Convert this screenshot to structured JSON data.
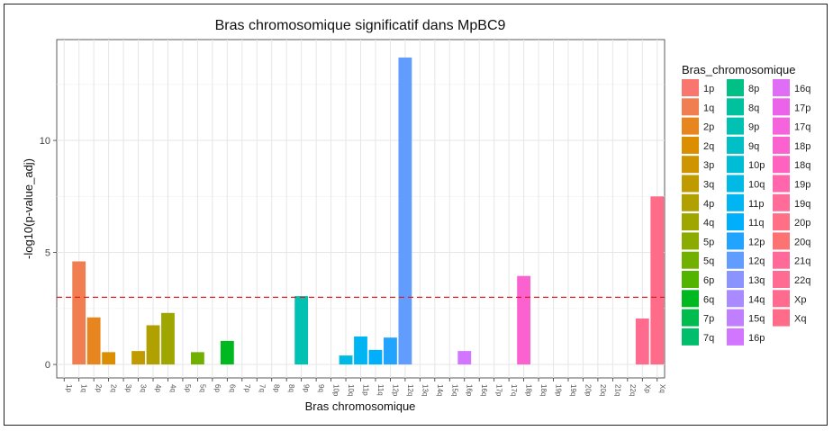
{
  "chart_data": {
    "type": "bar",
    "title": "Bras chromosomique significatif dans MpBC9",
    "xlabel": "Bras chromosomique",
    "ylabel": "-log10(p-value_adj)",
    "ylim": [
      -0.6,
      14.5
    ],
    "yticks": [
      0,
      5,
      10
    ],
    "threshold": 3.0,
    "threshold_color": "#e41a1c",
    "grid": true,
    "legend_title": "Bras_chromosomique",
    "legend_position": "right",
    "categories": [
      "1p",
      "1q",
      "2p",
      "2q",
      "3p",
      "3q",
      "4p",
      "4q",
      "5p",
      "5q",
      "6p",
      "6q",
      "7p",
      "7q",
      "8p",
      "8q",
      "9p",
      "9q",
      "10p",
      "10q",
      "11p",
      "11q",
      "12p",
      "12q",
      "13q",
      "14q",
      "15q",
      "16p",
      "16q",
      "17p",
      "17q",
      "18p",
      "18q",
      "19p",
      "19q",
      "20p",
      "20q",
      "21q",
      "22q",
      "Xp",
      "Xq"
    ],
    "values": [
      0,
      4.6,
      2.1,
      0.55,
      0,
      0.6,
      1.75,
      2.3,
      0,
      0.55,
      0,
      1.05,
      0,
      0,
      0,
      0,
      3.05,
      0,
      0,
      0.4,
      1.25,
      0.65,
      1.2,
      13.7,
      0,
      0,
      0,
      0.6,
      0,
      0,
      0,
      3.95,
      0,
      0,
      0,
      0,
      0,
      0,
      0,
      2.05,
      7.5
    ],
    "colors": [
      "#F8766D",
      "#F07E50",
      "#E7851E",
      "#DB8E00",
      "#CE9500",
      "#C09B00",
      "#B0A100",
      "#9FA600",
      "#8BAB00",
      "#72B000",
      "#53B400",
      "#00B81F",
      "#00BB4E",
      "#00BE6C",
      "#00C086",
      "#00C19D",
      "#00C1B2",
      "#00C0C6",
      "#00BDD6",
      "#00BAE5",
      "#00B5F1",
      "#00AFFC",
      "#20A4FF",
      "#619CFF",
      "#8B93FF",
      "#A98AFF",
      "#C07FFF",
      "#D275FF",
      "#E06DF5",
      "#EB63EA",
      "#F563DD",
      "#FB61CF",
      "#FF63BF",
      "#FF66AC",
      "#FF6C9A",
      "#FF7086",
      "#FD7272",
      "#FF6A98",
      "#FF6B93",
      "#FF6B8E",
      "#FF6C89"
    ]
  }
}
